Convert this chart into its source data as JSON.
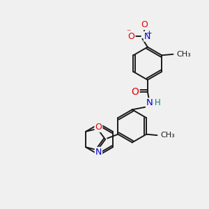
{
  "bg_color": "#f0f0f0",
  "bond_color": "#1a1a1a",
  "bond_width": 1.4,
  "atom_colors": {
    "O": "#e00000",
    "N": "#0000cc",
    "C": "#1a1a1a",
    "H": "#008080"
  },
  "font_size": 8.5,
  "fig_size": [
    3.0,
    3.0
  ],
  "dpi": 100,
  "scale": 1.0
}
